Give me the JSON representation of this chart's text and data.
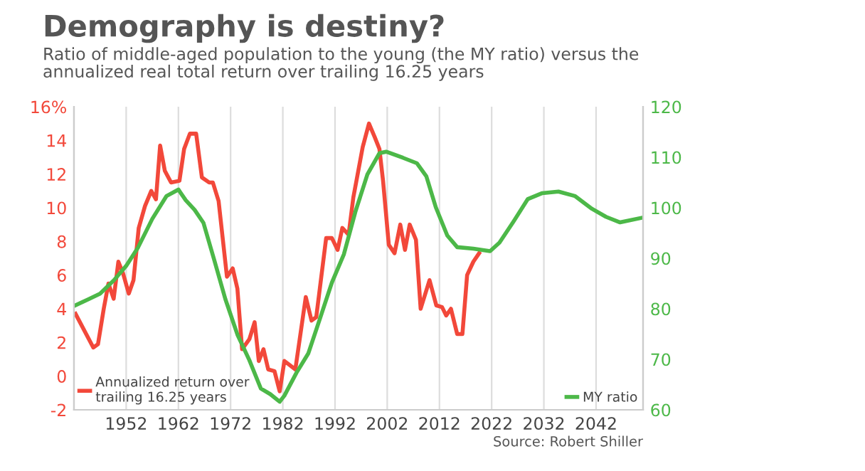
{
  "chart_data": {
    "type": "line",
    "title": "Demography is destiny?",
    "subtitle": "Ratio of middle-aged population to the young (the MY ratio) versus the\nannualized real total return over trailing 16.25 years",
    "annotations": [
      "Source: Robert Shiller"
    ],
    "series": [
      {
        "name": "Annualized return over\ntrailing 16.25 years",
        "color": "#f2483a",
        "axis": "y",
        "x": [
          1942.3,
          1945.7,
          1946.6,
          1947.7,
          1948.6,
          1949.6,
          1950.5,
          1951.4,
          1952.5,
          1953.4,
          1954.4,
          1955.6,
          1956.8,
          1957.7,
          1958.5,
          1959.4,
          1960.6,
          1962.2,
          1963.1,
          1964.2,
          1965.4,
          1966.5,
          1967.9,
          1968.6,
          1969.7,
          1971.3,
          1972.4,
          1973.3,
          1974.2,
          1975.6,
          1976.6,
          1977.4,
          1978.3,
          1979.2,
          1980.4,
          1981.4,
          1982.3,
          1984.4,
          1986.4,
          1987.5,
          1988.4,
          1990.3,
          1991.4,
          1992.5,
          1993.4,
          1994.6,
          1995.5,
          1997.3,
          1998.5,
          1999.6,
          2000.5,
          2001.2,
          2002.3,
          2003.4,
          2004.5,
          2005.4,
          2006.3,
          2007.5,
          2008.4,
          2010.1,
          2011.4,
          2012.5,
          2013.3,
          2014.2,
          2015.4,
          2016.4,
          2017.3,
          2018.5,
          2019.6
        ],
        "values": [
          3.7,
          1.7,
          1.9,
          4.0,
          5.5,
          4.6,
          6.8,
          6.1,
          4.9,
          5.7,
          8.8,
          10.1,
          11.0,
          10.5,
          13.7,
          12.2,
          11.5,
          11.6,
          13.5,
          14.4,
          14.4,
          11.8,
          11.5,
          11.5,
          10.4,
          5.9,
          6.4,
          5.2,
          1.6,
          2.2,
          3.2,
          0.9,
          1.6,
          0.4,
          0.3,
          -0.9,
          0.9,
          0.4,
          4.7,
          3.3,
          3.5,
          8.2,
          8.2,
          7.5,
          8.8,
          8.4,
          10.6,
          13.6,
          15.0,
          14.2,
          13.5,
          11.6,
          7.8,
          7.3,
          9.0,
          7.5,
          9.0,
          8.1,
          4.0,
          5.7,
          4.2,
          4.1,
          3.6,
          4.0,
          2.5,
          2.5,
          6.0,
          6.8,
          7.3
        ]
      },
      {
        "name": "MY ratio",
        "color": "#4cb848",
        "axis": "y2",
        "x": [
          1942.3,
          1944.8,
          1947.0,
          1949.7,
          1952,
          1954.3,
          1957,
          1959.7,
          1962,
          1963.4,
          1965.1,
          1966.8,
          1968.8,
          1971,
          1973.3,
          1975.6,
          1977.8,
          1979.6,
          1981.4,
          1982.3,
          1984.6,
          1986.9,
          1989.1,
          1991.4,
          1993.7,
          1995.9,
          1998.2,
          2000.5,
          2001.8,
          2005,
          2007.7,
          2009.5,
          2011.3,
          2013.5,
          2015.4,
          2018.5,
          2021.7,
          2023.5,
          2026.2,
          2028.9,
          2031.7,
          2034.8,
          2038,
          2041.2,
          2043.9,
          2046.6,
          2050.7
        ],
        "values": [
          80.7,
          81.9,
          83.0,
          85.7,
          88.5,
          92.2,
          97.8,
          102.3,
          103.6,
          101.5,
          99.6,
          97.0,
          89.9,
          81.9,
          74.9,
          69.8,
          64.2,
          63.1,
          61.6,
          62.8,
          67.3,
          71.2,
          78.0,
          85.2,
          90.8,
          99.2,
          106.6,
          110.8,
          111.1,
          109.9,
          108.8,
          106.2,
          100.1,
          94.5,
          92.2,
          91.9,
          91.4,
          93.1,
          97.3,
          101.7,
          102.9,
          103.2,
          102.3,
          99.8,
          98.2,
          97.1,
          98.0
        ]
      }
    ],
    "xlim": [
      1942,
      2051
    ],
    "xticks": [
      1952,
      1962,
      1972,
      1982,
      1992,
      2002,
      2012,
      2022,
      2032,
      2042
    ],
    "ylim": [
      -2,
      16
    ],
    "yticks": [
      -2,
      0,
      2,
      4,
      6,
      8,
      10,
      12,
      14,
      {
        "value": 16,
        "label": "16%"
      }
    ],
    "y2lim": [
      60,
      120
    ],
    "y2ticks": [
      60,
      70,
      80,
      90,
      100,
      110,
      120
    ],
    "grid": "x",
    "legend": "bottom",
    "marker": "none",
    "line_style": "solid"
  }
}
